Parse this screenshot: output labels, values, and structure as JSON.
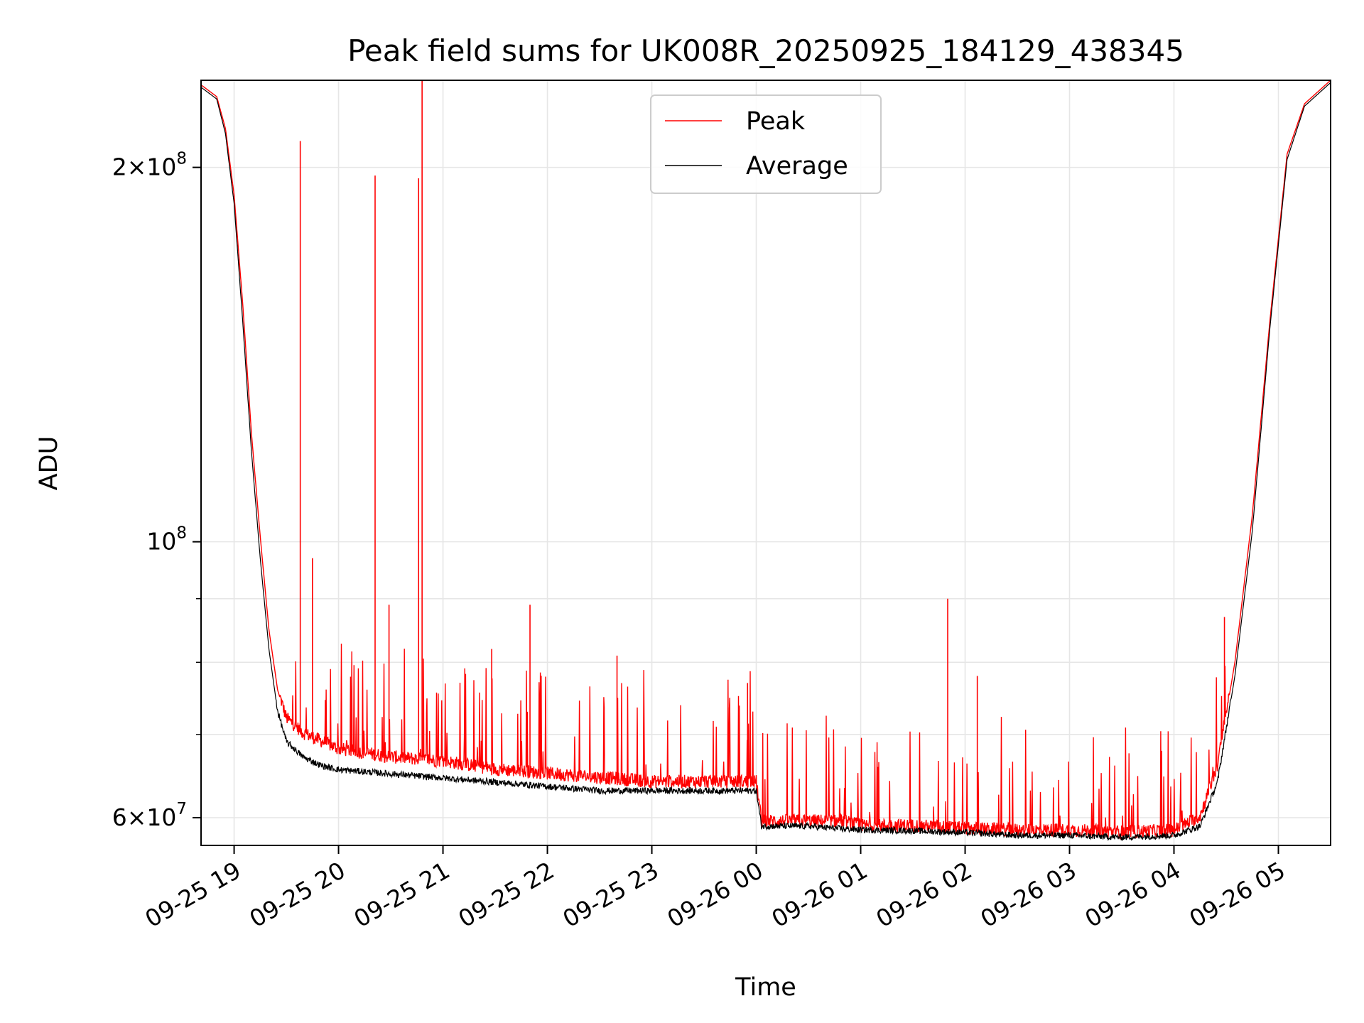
{
  "chart_data": {
    "type": "line",
    "title": "Peak field sums for UK008R_20250925_184129_438345",
    "xlabel": "Time",
    "ylabel": "ADU",
    "yscale": "log",
    "grid": true,
    "legend_position": "top-center",
    "xlim": [
      "2025-09-25 18:41",
      "2025-09-26 05:30"
    ],
    "ylim": [
      57000000,
      235000000
    ],
    "x_ticks": [
      "09-25 19",
      "09-25 20",
      "09-25 21",
      "09-25 22",
      "09-25 23",
      "09-26 00",
      "09-26 01",
      "09-26 02",
      "09-26 03",
      "09-26 04",
      "09-26 05"
    ],
    "y_ticks": [
      {
        "value": 60000000,
        "base": "6×10",
        "exp": "7"
      },
      {
        "value": 100000000,
        "base": "10",
        "exp": "8"
      },
      {
        "value": 200000000,
        "base": "2×10",
        "exp": "8"
      }
    ],
    "series": [
      {
        "name": "Peak",
        "color": "#ff0000",
        "x": [
          "2025-09-25 18:41",
          "2025-09-25 18:50",
          "2025-09-25 18:55",
          "2025-09-25 19:00",
          "2025-09-25 19:05",
          "2025-09-25 19:10",
          "2025-09-25 19:15",
          "2025-09-25 19:20",
          "2025-09-25 19:25",
          "2025-09-25 19:30",
          "2025-09-25 19:40",
          "2025-09-25 19:50",
          "2025-09-25 20:00",
          "2025-09-25 20:30",
          "2025-09-25 21:00",
          "2025-09-25 21:30",
          "2025-09-25 22:00",
          "2025-09-25 22:30",
          "2025-09-25 23:00",
          "2025-09-25 23:30",
          "2025-09-26 00:00",
          "2025-09-26 00:03",
          "2025-09-26 00:30",
          "2025-09-26 00:50",
          "2025-09-26 01:00",
          "2025-09-26 01:30",
          "2025-09-26 02:00",
          "2025-09-26 02:30",
          "2025-09-26 03:00",
          "2025-09-26 03:30",
          "2025-09-26 04:00",
          "2025-09-26 04:15",
          "2025-09-26 04:25",
          "2025-09-26 04:35",
          "2025-09-26 04:45",
          "2025-09-26 04:55",
          "2025-09-26 05:05",
          "2025-09-26 05:15",
          "2025-09-26 05:30"
        ],
        "y": [
          233000000,
          228000000,
          215000000,
          190000000,
          155000000,
          122000000,
          101000000,
          85000000,
          76000000,
          72000000,
          70000000,
          69000000,
          68000000,
          67000000,
          66500000,
          65500000,
          65000000,
          64500000,
          64000000,
          64000000,
          64000000,
          59500000,
          59500000,
          59500000,
          59000000,
          59000000,
          58700000,
          58500000,
          58500000,
          58300000,
          58500000,
          60000000,
          66000000,
          80000000,
          105000000,
          150000000,
          205000000,
          225000000,
          235000000
        ],
        "spikes": [
          {
            "x": "2025-09-25 19:38",
            "y": 210000000
          },
          {
            "x": "2025-09-25 19:45",
            "y": 97000000
          },
          {
            "x": "2025-09-25 20:21",
            "y": 197000000
          },
          {
            "x": "2025-09-25 20:29",
            "y": 89000000
          },
          {
            "x": "2025-09-25 20:46",
            "y": 196000000
          },
          {
            "x": "2025-09-25 20:48",
            "y": 235000000
          },
          {
            "x": "2025-09-25 21:28",
            "y": 82000000
          },
          {
            "x": "2025-09-25 21:50",
            "y": 89000000
          },
          {
            "x": "2025-09-25 22:40",
            "y": 81000000
          },
          {
            "x": "2025-09-25 23:55",
            "y": 77000000
          },
          {
            "x": "2025-09-26 01:50",
            "y": 90000000
          },
          {
            "x": "2025-09-26 02:07",
            "y": 78000000
          },
          {
            "x": "2025-09-26 04:29",
            "y": 87000000
          }
        ]
      },
      {
        "name": "Average",
        "color": "#000000",
        "x": [
          "2025-09-25 18:41",
          "2025-09-25 18:50",
          "2025-09-25 18:55",
          "2025-09-25 19:00",
          "2025-09-25 19:05",
          "2025-09-25 19:10",
          "2025-09-25 19:15",
          "2025-09-25 19:20",
          "2025-09-25 19:25",
          "2025-09-25 19:30",
          "2025-09-25 19:40",
          "2025-09-25 19:50",
          "2025-09-25 20:00",
          "2025-09-25 20:30",
          "2025-09-25 21:00",
          "2025-09-25 21:30",
          "2025-09-25 22:00",
          "2025-09-25 22:30",
          "2025-09-25 23:00",
          "2025-09-25 23:30",
          "2025-09-26 00:00",
          "2025-09-26 00:03",
          "2025-09-26 00:30",
          "2025-09-26 00:50",
          "2025-09-26 01:00",
          "2025-09-26 01:30",
          "2025-09-26 02:00",
          "2025-09-26 02:30",
          "2025-09-26 03:00",
          "2025-09-26 03:30",
          "2025-09-26 04:00",
          "2025-09-26 04:15",
          "2025-09-26 04:25",
          "2025-09-26 04:35",
          "2025-09-26 04:45",
          "2025-09-26 04:55",
          "2025-09-26 05:05",
          "2025-09-26 05:15",
          "2025-09-26 05:30"
        ],
        "y": [
          232000000,
          227000000,
          213000000,
          187000000,
          150000000,
          118000000,
          97000000,
          82000000,
          73000000,
          69000000,
          67000000,
          66000000,
          65500000,
          65000000,
          64500000,
          64000000,
          63500000,
          63000000,
          63000000,
          63000000,
          63000000,
          59000000,
          59000000,
          58700000,
          58600000,
          58500000,
          58300000,
          58000000,
          58000000,
          57800000,
          58000000,
          59000000,
          64000000,
          78000000,
          102000000,
          148000000,
          203000000,
          224000000,
          234000000
        ]
      }
    ]
  }
}
